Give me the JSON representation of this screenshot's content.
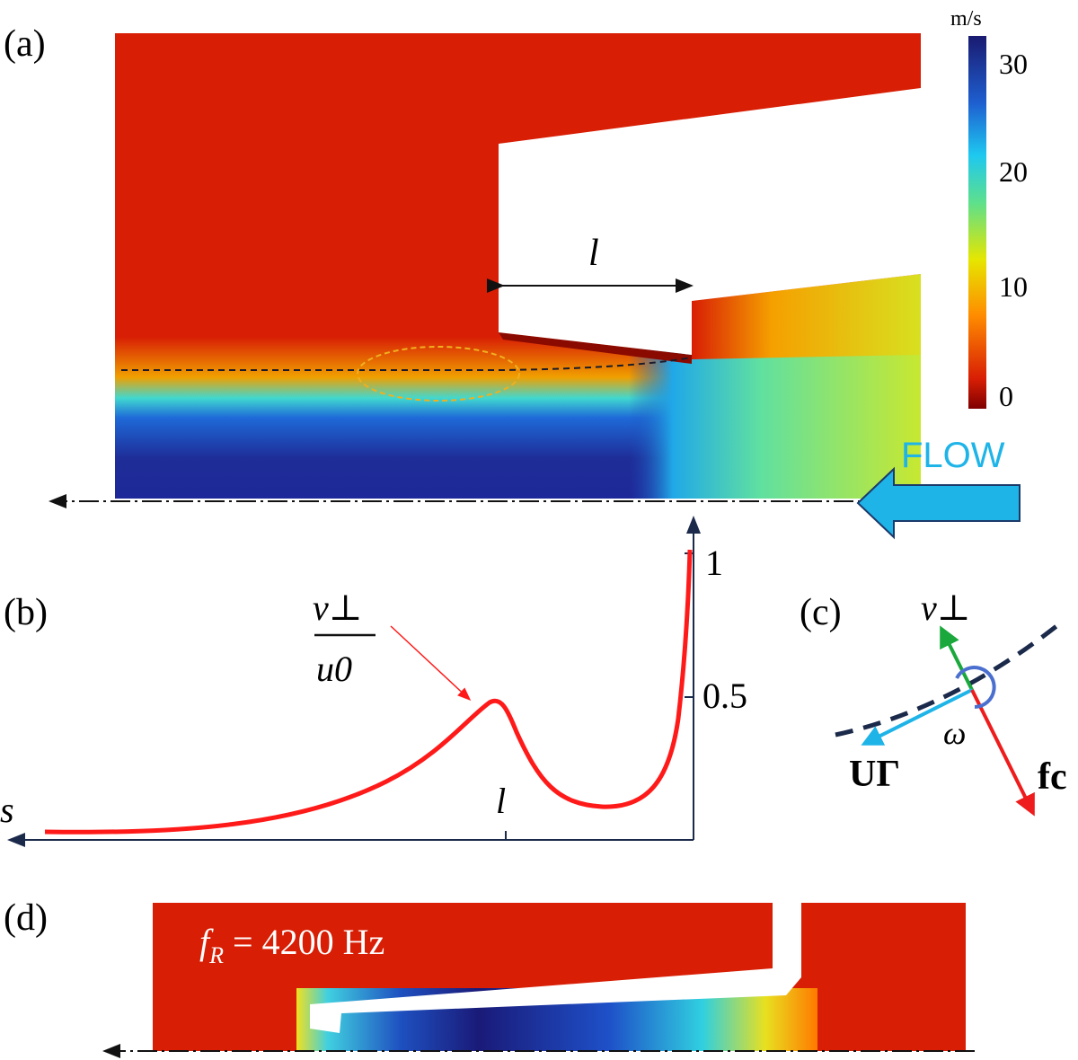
{
  "panels": {
    "a": {
      "label": "(a)",
      "length_label": "l",
      "flow_label": "FLOW"
    },
    "b": {
      "label": "(b)",
      "ylabel_num": "v⊥",
      "ylabel_den": "u0",
      "xlabel": "s",
      "xtick": "l",
      "yticks": [
        "1",
        "0.5"
      ]
    },
    "c": {
      "label": "(c)",
      "v_perp": "v⊥",
      "omega": "ω",
      "u_gamma": "UΓ",
      "f_c": "fc"
    },
    "d": {
      "label": "(d)",
      "frequency_text": "f_R = 4200 Hz",
      "freq_symbol": "f",
      "freq_sub": "R",
      "freq_value": " = 4200 Hz"
    }
  },
  "colorbar": {
    "unit": "m/s",
    "ticks": [
      "30",
      "20",
      "10",
      "0"
    ],
    "range": [
      -2,
      33
    ],
    "colormap": "jet"
  },
  "colors": {
    "field_red": "#d81e05",
    "flow_arrow": "#1eb4e8",
    "curve": "#ff1a1a",
    "axis": "#1b2a4a",
    "v_perp_arrow": "#1aa83c",
    "u_gamma_arrow": "#1eb4e8",
    "f_c_arrow": "#ee1c1c",
    "omega": "#4a6fcf"
  }
}
